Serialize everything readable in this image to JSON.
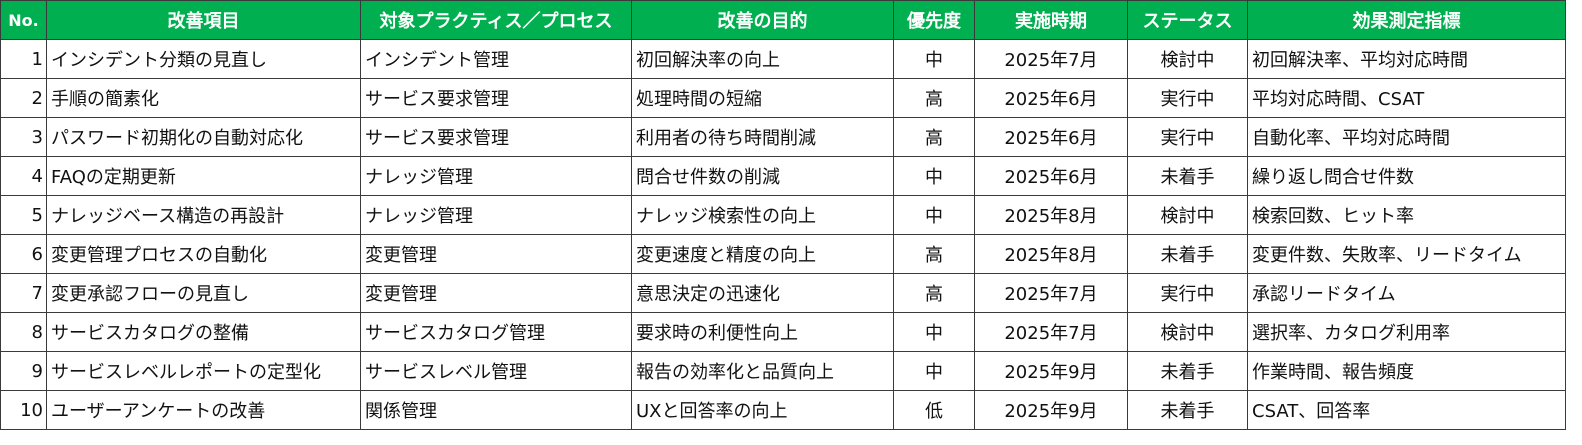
{
  "table": {
    "headers": {
      "no": "No.",
      "item": "改善項目",
      "target": "対象プラクティス／プロセス",
      "purpose": "改善の目的",
      "priority": "優先度",
      "period": "実施時期",
      "status": "ステータス",
      "kpi": "効果測定指標"
    },
    "header_color": "#00b050",
    "rows": [
      {
        "no": "1",
        "item": "インシデント分類の見直し",
        "target": "インシデント管理",
        "purpose": "初回解決率の向上",
        "priority": "中",
        "period": "2025年7月",
        "status": "検討中",
        "kpi": "初回解決率、平均対応時間"
      },
      {
        "no": "2",
        "item": "手順の簡素化",
        "target": "サービス要求管理",
        "purpose": "処理時間の短縮",
        "priority": "高",
        "period": "2025年6月",
        "status": "実行中",
        "kpi": "平均対応時間、CSAT"
      },
      {
        "no": "3",
        "item": "パスワード初期化の自動対応化",
        "target": "サービス要求管理",
        "purpose": "利用者の待ち時間削減",
        "priority": "高",
        "period": "2025年6月",
        "status": "実行中",
        "kpi": "自動化率、平均対応時間"
      },
      {
        "no": "4",
        "item": "FAQの定期更新",
        "target": "ナレッジ管理",
        "purpose": "問合せ件数の削減",
        "priority": "中",
        "period": "2025年6月",
        "status": "未着手",
        "kpi": "繰り返し問合せ件数"
      },
      {
        "no": "5",
        "item": "ナレッジベース構造の再設計",
        "target": "ナレッジ管理",
        "purpose": "ナレッジ検索性の向上",
        "priority": "中",
        "period": "2025年8月",
        "status": "検討中",
        "kpi": "検索回数、ヒット率"
      },
      {
        "no": "6",
        "item": "変更管理プロセスの自動化",
        "target": "変更管理",
        "purpose": "変更速度と精度の向上",
        "priority": "高",
        "period": "2025年8月",
        "status": "未着手",
        "kpi": "変更件数、失敗率、リードタイム"
      },
      {
        "no": "7",
        "item": "変更承認フローの見直し",
        "target": "変更管理",
        "purpose": "意思決定の迅速化",
        "priority": "高",
        "period": "2025年7月",
        "status": "実行中",
        "kpi": "承認リードタイム"
      },
      {
        "no": "8",
        "item": "サービスカタログの整備",
        "target": "サービスカタログ管理",
        "purpose": "要求時の利便性向上",
        "priority": "中",
        "period": "2025年7月",
        "status": "検討中",
        "kpi": "選択率、カタログ利用率"
      },
      {
        "no": "9",
        "item": "サービスレベルレポートの定型化",
        "target": "サービスレベル管理",
        "purpose": "報告の効率化と品質向上",
        "priority": "中",
        "period": "2025年9月",
        "status": "未着手",
        "kpi": "作業時間、報告頻度"
      },
      {
        "no": "10",
        "item": "ユーザーアンケートの改善",
        "target": "関係管理",
        "purpose": "UXと回答率の向上",
        "priority": "低",
        "period": "2025年9月",
        "status": "未着手",
        "kpi": "CSAT、回答率"
      }
    ]
  }
}
